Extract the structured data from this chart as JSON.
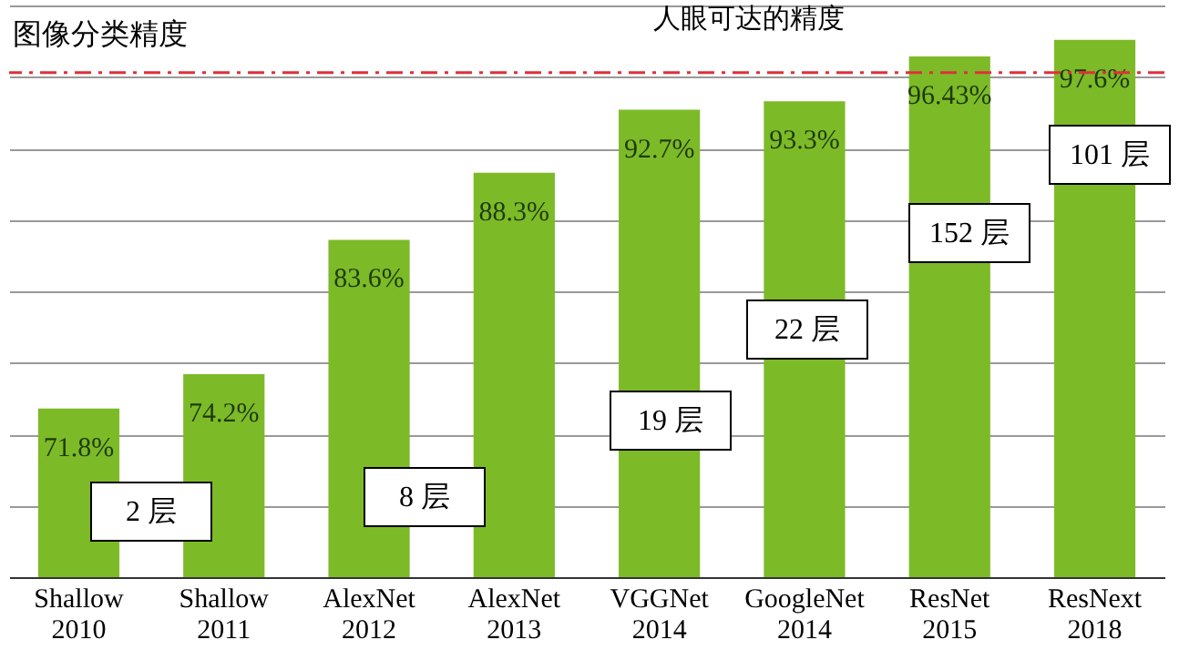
{
  "chart_data": {
    "type": "bar",
    "title": "图像分类精度",
    "categories": [
      "Shallow\n2010",
      "Shallow\n2011",
      "AlexNet\n2012",
      "AlexNet\n2013",
      "VGGNet\n2014",
      "GoogleNet\n2014",
      "ResNet\n2015",
      "ResNext\n2018"
    ],
    "values": [
      71.8,
      74.2,
      83.6,
      88.3,
      92.7,
      93.3,
      96.43,
      97.6
    ],
    "value_labels": [
      "71.8%",
      "74.2%",
      "83.6%",
      "88.3%",
      "92.7%",
      "93.3%",
      "96.43%",
      "97.6%"
    ],
    "color": "#7dba28",
    "ylim": [
      60,
      100
    ],
    "grid": "y",
    "tick_labels": "x",
    "ref_lines": [
      {
        "axis": "y",
        "value": 95.3,
        "label": "人眼可达的精度",
        "color": "#e0303a",
        "line_style": "dashdot"
      }
    ],
    "annotations": [
      "2 层",
      "8 层",
      "19 层",
      "22 层",
      "152 层",
      "101 层"
    ]
  }
}
